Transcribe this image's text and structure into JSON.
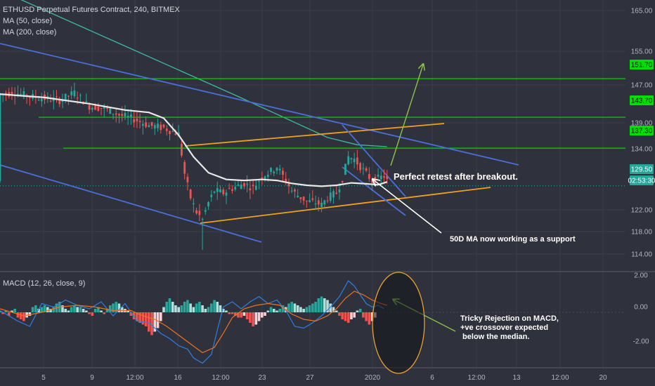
{
  "legend": {
    "symbol": "ETHUSD Perpetual Futures Contract, 240, BITMEX",
    "ma50": "MA (50, close)",
    "ma200": "MA (200, close)"
  },
  "macd_legend": "MACD (12, 26, close, 9)",
  "annotations": {
    "retest": "Perfect retest after breakout.",
    "support": "50D MA now working as a support",
    "macd_lines": [
      "Tricky Rejection on MACD,",
      "+ve crossover expected",
      " below the median."
    ]
  },
  "colors": {
    "background": "#2f323c",
    "up": "#26a69a",
    "down": "#ef5350",
    "level_line": "#00e000",
    "channel_blue": "#4a6fd8",
    "channel_orange": "#f0a020",
    "ma50": "#e8e8e8",
    "ma200": "#3fb8a4",
    "macd_line": "#2f7fe0",
    "signal_line": "#f07020",
    "arrow_green": "#8bc34a"
  },
  "chart_data": [
    {
      "type": "candlestick",
      "title": "ETHUSD Perpetual Futures Contract, 240, BITMEX",
      "x_ticks": [
        "5",
        "9",
        "12:00",
        "16",
        "12:00",
        "23",
        "27",
        "2020",
        "6",
        "12:00",
        "13",
        "12:00",
        "20"
      ],
      "y_ticks": [
        "165.00",
        "155.00",
        "151.70",
        "147.00",
        "143.70",
        "139.00",
        "137.30",
        "134.00",
        "129.50",
        "02:53:30",
        "122.00",
        "118.00",
        "114.00"
      ],
      "price_levels": [
        151.7,
        143.7,
        137.3
      ],
      "last_price": "129.50",
      "countdown": "02:53:30",
      "ylim": [
        112,
        168
      ],
      "close_path": [
        [
          0,
          148.5
        ],
        [
          5,
          148.8
        ],
        [
          10,
          148.0
        ],
        [
          15,
          147.6
        ],
        [
          20,
          147.2
        ],
        [
          25,
          148.8
        ],
        [
          30,
          146.0
        ],
        [
          35,
          145.5
        ],
        [
          40,
          144.2
        ],
        [
          45,
          143.3
        ],
        [
          50,
          142.0
        ],
        [
          55,
          141.5
        ],
        [
          60,
          140.2
        ],
        [
          62,
          132.0
        ],
        [
          64,
          127.0
        ],
        [
          66,
          124.0
        ],
        [
          68,
          122.5
        ],
        [
          70,
          126.0
        ],
        [
          72,
          128.5
        ],
        [
          75,
          128.0
        ],
        [
          78,
          129.0
        ],
        [
          82,
          130.0
        ],
        [
          85,
          129.0
        ],
        [
          88,
          131.5
        ],
        [
          91,
          132.5
        ],
        [
          93,
          133.5
        ],
        [
          95,
          131.5
        ],
        [
          98,
          128.5
        ],
        [
          100,
          127.5
        ],
        [
          103,
          126.3
        ],
        [
          106,
          126.0
        ],
        [
          108,
          125.5
        ],
        [
          110,
          127.0
        ],
        [
          113,
          128.0
        ],
        [
          115,
          131.0
        ],
        [
          117,
          135.5
        ],
        [
          119,
          135.0
        ],
        [
          121,
          133.5
        ],
        [
          123,
          132.0
        ],
        [
          125,
          130.5
        ],
        [
          127,
          131.0
        ],
        [
          129,
          131.5
        ],
        [
          130,
          130.5
        ]
      ],
      "ma50_path": [
        [
          0,
          148.5
        ],
        [
          15,
          147.8
        ],
        [
          30,
          146.5
        ],
        [
          42,
          145.2
        ],
        [
          50,
          144.7
        ],
        [
          55,
          143.5
        ],
        [
          60,
          140.0
        ],
        [
          65,
          135.5
        ],
        [
          70,
          132.2
        ],
        [
          76,
          130.8
        ],
        [
          82,
          130.6
        ],
        [
          88,
          130.8
        ],
        [
          93,
          130.6
        ],
        [
          98,
          130.0
        ],
        [
          103,
          129.6
        ],
        [
          108,
          129.4
        ],
        [
          113,
          129.6
        ],
        [
          118,
          130.1
        ],
        [
          123,
          129.9
        ],
        [
          127,
          129.7
        ],
        [
          130,
          130.3
        ]
      ],
      "ma200_path": [
        [
          0,
          170
        ],
        [
          40,
          159
        ],
        [
          80,
          148
        ],
        [
          110,
          139.5
        ],
        [
          120,
          138.0
        ],
        [
          130,
          137.6
        ]
      ],
      "macd": {
        "ylim": [
          -3.0,
          2.2
        ],
        "y_ticks": [
          "2.00",
          "0.00",
          "-2.00"
        ],
        "histogram": [
          0.1,
          -0.1,
          0.1,
          -0.2,
          0.1,
          0.2,
          -0.3,
          -0.4,
          -0.5,
          -0.3,
          -0.2,
          0.3,
          0.4,
          0.2,
          0.3,
          0.4,
          0.3,
          0.2,
          0.3,
          0.5,
          0.6,
          0.4,
          0.2,
          0.1,
          0.3,
          0.4,
          0.3,
          0.3,
          0.2,
          0.1,
          -0.1,
          -0.2,
          0.2,
          0.3,
          0.1,
          -0.1,
          0.2,
          0.4,
          0.5,
          0.6,
          0.5,
          0.3,
          0.2,
          0.1,
          -0.2,
          -0.4,
          -0.5,
          -0.6,
          -0.7,
          -0.8,
          -1.1,
          -1.3,
          -1.1,
          -0.9,
          -0.5,
          0.3,
          0.6,
          0.8,
          0.6,
          0.4,
          0.3,
          0.4,
          0.6,
          0.7,
          0.5,
          0.3,
          0.5,
          0.6,
          0.4,
          0.2,
          0.3,
          0.5,
          0.7,
          0.6,
          0.4,
          0.2,
          0.1,
          -0.1,
          -0.1,
          -0.2,
          -0.3,
          -0.3,
          -0.2,
          -0.4,
          -0.6,
          -0.8,
          -0.7,
          -0.5,
          -0.3,
          -0.2,
          0.1,
          0.3,
          0.2,
          0.1,
          0.2,
          0.4,
          0.3,
          0.5,
          0.6,
          0.5,
          0.4,
          0.3,
          0.2,
          0.3,
          0.4,
          0.5,
          0.6,
          0.8,
          0.9,
          0.8,
          0.7,
          0.5,
          0.3,
          0.1,
          -0.2,
          -0.4,
          -0.5,
          -0.6,
          -0.4,
          -0.3,
          0.1,
          0.2,
          -0.3,
          -0.5,
          -0.7,
          -0.5,
          -0.3
        ],
        "macd_path": [
          [
            0,
            0.1
          ],
          [
            6,
            -0.5
          ],
          [
            10,
            -0.8
          ],
          [
            14,
            0.5
          ],
          [
            18,
            0.3
          ],
          [
            22,
            0.7
          ],
          [
            26,
            0.4
          ],
          [
            30,
            0.2
          ],
          [
            34,
            0.6
          ],
          [
            38,
            -0.2
          ],
          [
            42,
            0.5
          ],
          [
            46,
            -0.5
          ],
          [
            50,
            -0.6
          ],
          [
            54,
            -1.2
          ],
          [
            57,
            -1.5
          ],
          [
            60,
            -1.9
          ],
          [
            63,
            -2.1
          ],
          [
            65,
            -2.6
          ],
          [
            68,
            -2.9
          ],
          [
            71,
            -2.4
          ],
          [
            73,
            -1.0
          ],
          [
            75,
            0.3
          ],
          [
            78,
            0.6
          ],
          [
            81,
            0.2
          ],
          [
            84,
            0.6
          ],
          [
            87,
            0.9
          ],
          [
            90,
            0.5
          ],
          [
            93,
            0.7
          ],
          [
            96,
            0.1
          ],
          [
            99,
            -0.8
          ],
          [
            102,
            -0.9
          ],
          [
            105,
            -0.6
          ],
          [
            108,
            -0.2
          ],
          [
            111,
            0.3
          ],
          [
            114,
            0.9
          ],
          [
            117,
            1.8
          ],
          [
            119,
            1.5
          ],
          [
            121,
            1.0
          ],
          [
            123,
            0.5
          ],
          [
            125,
            0.3
          ],
          [
            127,
            0.4
          ],
          [
            129,
            0.2
          ]
        ],
        "signal_path": [
          [
            0,
            0.2
          ],
          [
            8,
            -0.2
          ],
          [
            14,
            0.0
          ],
          [
            20,
            0.3
          ],
          [
            26,
            0.4
          ],
          [
            32,
            0.3
          ],
          [
            38,
            0.1
          ],
          [
            44,
            0.1
          ],
          [
            48,
            -0.2
          ],
          [
            52,
            -0.4
          ],
          [
            56,
            -0.8
          ],
          [
            60,
            -1.3
          ],
          [
            64,
            -1.8
          ],
          [
            68,
            -2.3
          ],
          [
            72,
            -2.0
          ],
          [
            75,
            -1.2
          ],
          [
            78,
            -0.3
          ],
          [
            82,
            0.2
          ],
          [
            86,
            0.4
          ],
          [
            90,
            0.5
          ],
          [
            94,
            0.4
          ],
          [
            98,
            -0.1
          ],
          [
            102,
            -0.4
          ],
          [
            106,
            -0.5
          ],
          [
            110,
            -0.2
          ],
          [
            113,
            0.2
          ],
          [
            116,
            0.8
          ],
          [
            119,
            1.2
          ],
          [
            122,
            1.0
          ],
          [
            125,
            0.7
          ],
          [
            128,
            0.5
          ],
          [
            130,
            0.4
          ]
        ]
      }
    }
  ]
}
